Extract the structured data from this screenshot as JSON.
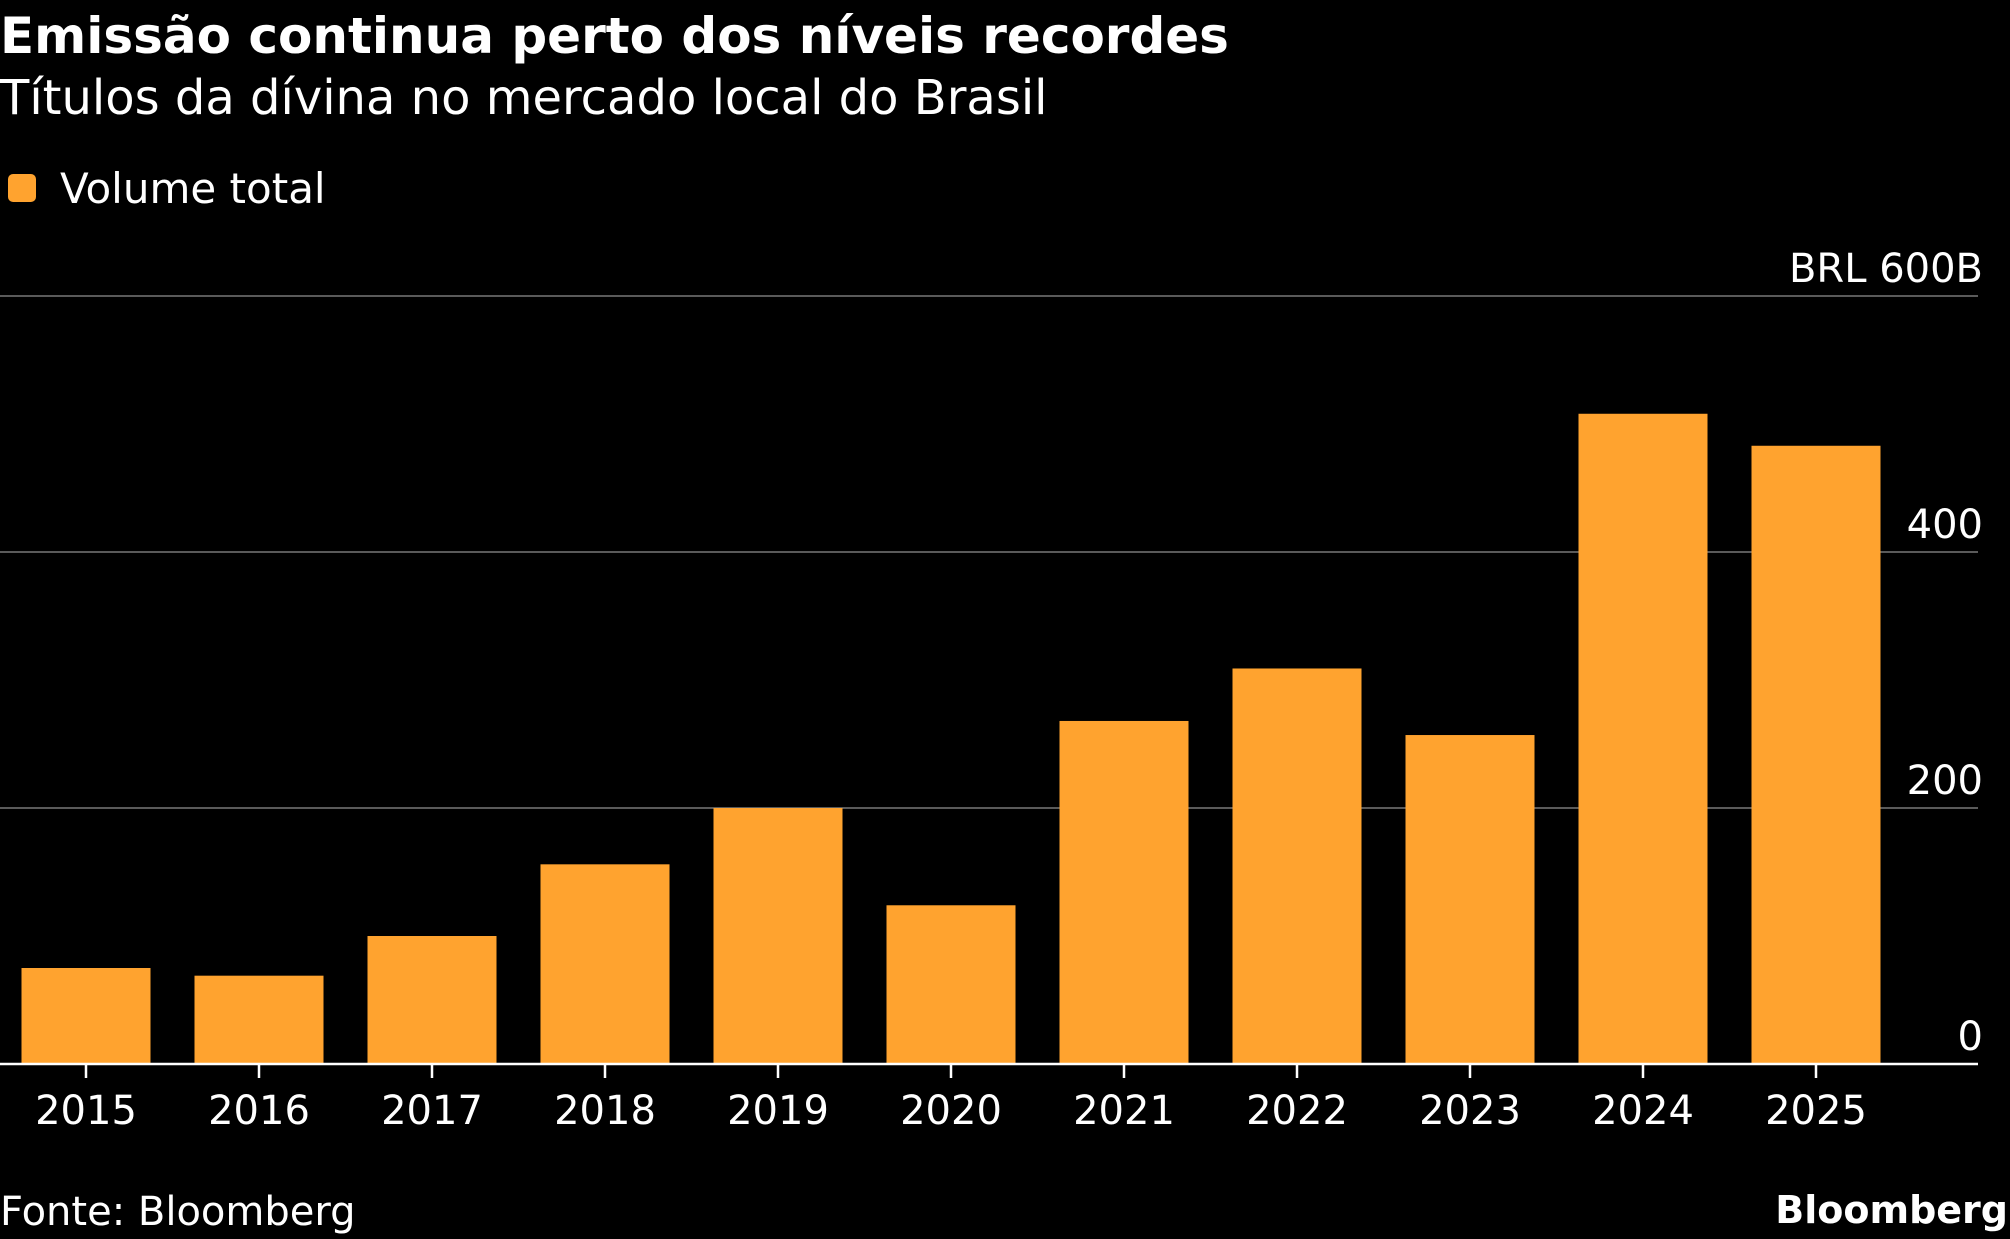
{
  "header": {
    "title": "Emissão continua perto dos níveis recordes",
    "subtitle": "Títulos da dívina no mercado local do Brasil"
  },
  "legend": {
    "items": [
      {
        "label": "Volume total",
        "color": "#FFA32F"
      }
    ]
  },
  "footer": {
    "source": "Fonte: Bloomberg",
    "brand": "Bloomberg"
  },
  "colors": {
    "background": "#000000",
    "bar": "#FFA32F",
    "gridline": "#5a5a5a",
    "baseline": "#ffffff",
    "text": "#ffffff"
  },
  "chart_data": {
    "type": "bar",
    "categories": [
      "2015",
      "2016",
      "2017",
      "2018",
      "2019",
      "2020",
      "2021",
      "2022",
      "2023",
      "2024",
      "2025"
    ],
    "series": [
      {
        "name": "Volume total",
        "values": [
          75,
          69,
          100,
          156,
          200,
          124,
          268,
          309,
          257,
          508,
          483
        ]
      }
    ],
    "ylim": [
      0,
      600
    ],
    "yticks": [
      0,
      200,
      400,
      600
    ],
    "ytick_labels": [
      "0",
      "200",
      "400",
      "BRL 600B"
    ],
    "y_axis_position": "right",
    "grid": true,
    "legend_position": "top-left",
    "title": "Emissão continua perto dos níveis recordes",
    "subtitle": "Títulos da dívina no mercado local do Brasil",
    "xlabel": "",
    "ylabel": ""
  }
}
